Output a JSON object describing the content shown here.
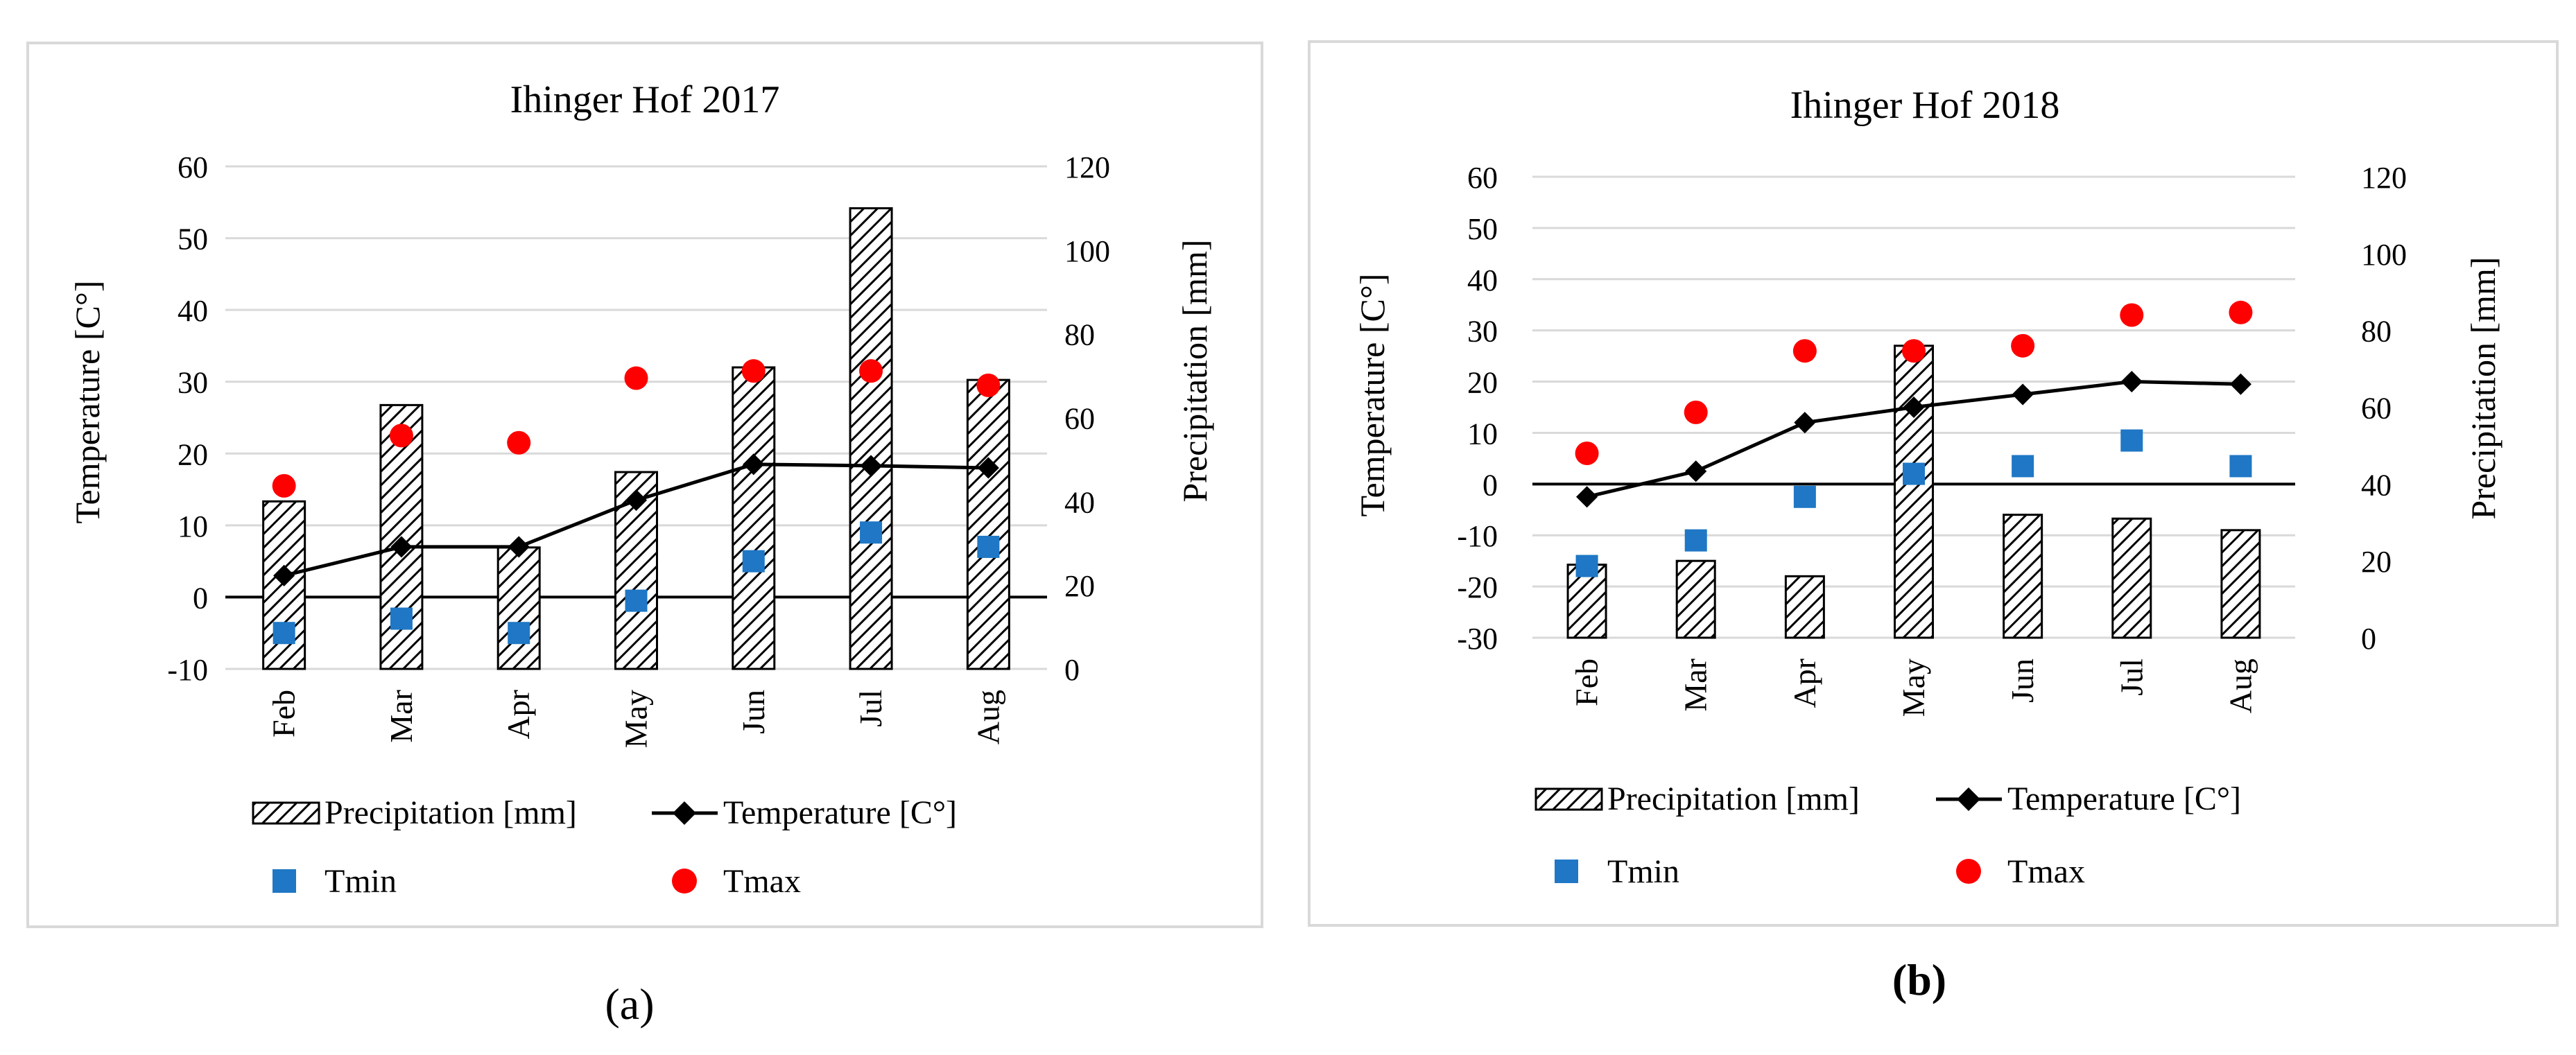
{
  "figure": {
    "panel_labels": [
      "(a)",
      "(b)"
    ],
    "colors": {
      "tmin": "#1F77C5",
      "tmax": "#FF0000",
      "line": "#000000",
      "frame": "#D9D9D9",
      "grid": "#D9D9D9",
      "axis_text": "#595959"
    }
  },
  "chart_data": [
    {
      "type": "bar+line+scatter",
      "title": "Ihinger Hof 2017",
      "categories": [
        "Feb",
        "Mar",
        "Apr",
        "May",
        "Jun",
        "Jul",
        "Aug"
      ],
      "ylabel": "Temperature [C°]",
      "y2label": "Precipitation [mm]",
      "ylim": [
        -10,
        60
      ],
      "yticks": [
        "60",
        "50",
        "40",
        "30",
        "20",
        "10",
        "0",
        "-10"
      ],
      "y2lim": [
        0,
        120
      ],
      "y2ticks": [
        "120",
        "100",
        "80",
        "60",
        "40",
        "20",
        "0"
      ],
      "series": [
        {
          "name": "Precipitation [mm]",
          "kind": "bar",
          "axis": "right",
          "values": [
            40,
            63,
            29,
            47,
            72,
            110,
            69
          ]
        },
        {
          "name": "Temperature [C°]",
          "kind": "line",
          "axis": "left",
          "values": [
            3,
            7,
            7,
            13.5,
            18.5,
            18.3,
            18
          ]
        },
        {
          "name": "Tmin",
          "kind": "scatter",
          "axis": "left",
          "values": [
            -5,
            -3,
            -5,
            -0.5,
            5,
            9,
            7
          ]
        },
        {
          "name": "Tmax",
          "kind": "scatter",
          "axis": "left",
          "values": [
            15.5,
            22.5,
            21.5,
            30.5,
            31.5,
            31.5,
            29.5
          ]
        }
      ],
      "legend": [
        "Precipitation [mm]",
        "Temperature [C°]",
        "Tmin",
        "Tmax"
      ],
      "legend_position": "bottom"
    },
    {
      "type": "bar+line+scatter",
      "title": "Ihinger Hof 2018",
      "categories": [
        "Feb",
        "Mar",
        "Apr",
        "May",
        "Jun",
        "Jul",
        "Aug"
      ],
      "ylabel": "Temperature [C°]",
      "y2label": "Precipitation [mm]",
      "ylim": [
        -30,
        60
      ],
      "yticks": [
        "60",
        "50",
        "40",
        "30",
        "20",
        "10",
        "0",
        "-10",
        "-20",
        "-30"
      ],
      "y2lim": [
        0,
        120
      ],
      "y2ticks": [
        "120",
        "100",
        "80",
        "60",
        "40",
        "20",
        "0"
      ],
      "series": [
        {
          "name": "Precipitation [mm]",
          "kind": "bar",
          "axis": "right",
          "values": [
            19,
            20,
            16,
            76,
            32,
            31,
            28
          ]
        },
        {
          "name": "Temperature [C°]",
          "kind": "line",
          "axis": "left",
          "values": [
            -2.5,
            2.5,
            12,
            15,
            17.5,
            20,
            19.5
          ]
        },
        {
          "name": "Tmin",
          "kind": "scatter",
          "axis": "left",
          "values": [
            -16,
            -11,
            -2.5,
            2,
            3.5,
            8.5,
            3.5
          ]
        },
        {
          "name": "Tmax",
          "kind": "scatter",
          "axis": "left",
          "values": [
            6,
            14,
            26,
            26,
            27,
            33,
            33.5
          ]
        }
      ],
      "legend": [
        "Precipitation [mm]",
        "Temperature [C°]",
        "Tmin",
        "Tmax"
      ],
      "legend_position": "bottom"
    }
  ]
}
